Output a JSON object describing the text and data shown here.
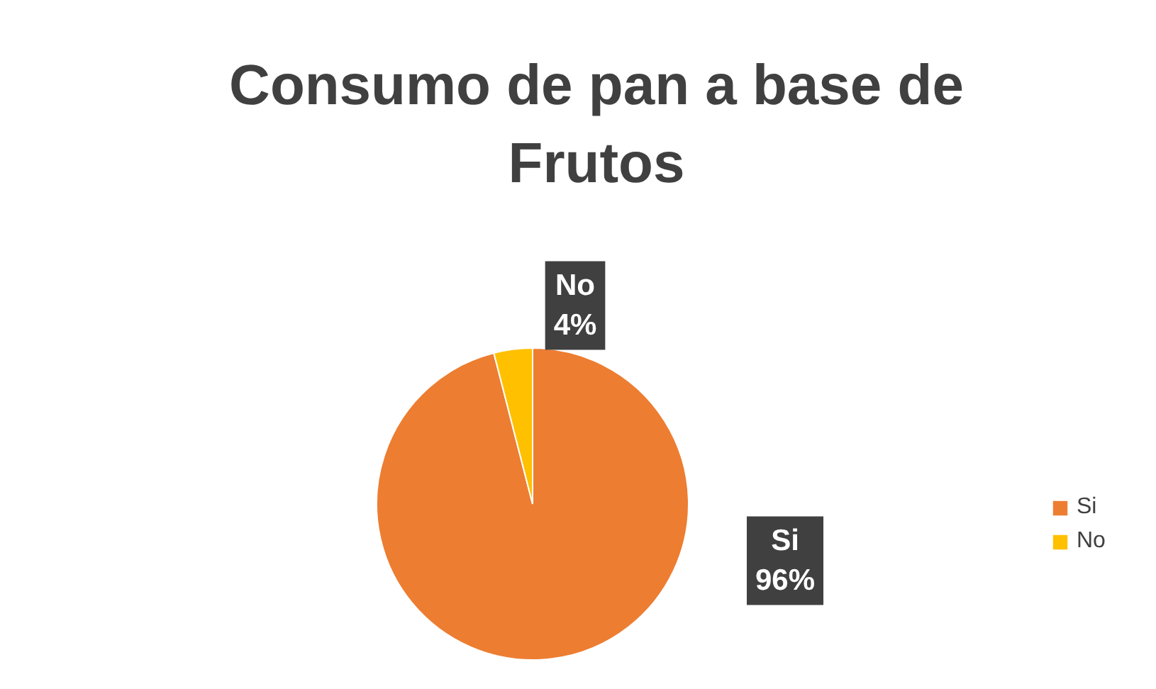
{
  "chart_data": {
    "type": "pie",
    "title": "Consumo de pan a base de Frutos",
    "categories": [
      "Si",
      "No"
    ],
    "values": [
      96,
      4
    ],
    "colors": [
      "#ed7d31",
      "#ffc000"
    ],
    "value_labels": [
      "96%",
      "4%"
    ],
    "legend": "right"
  }
}
